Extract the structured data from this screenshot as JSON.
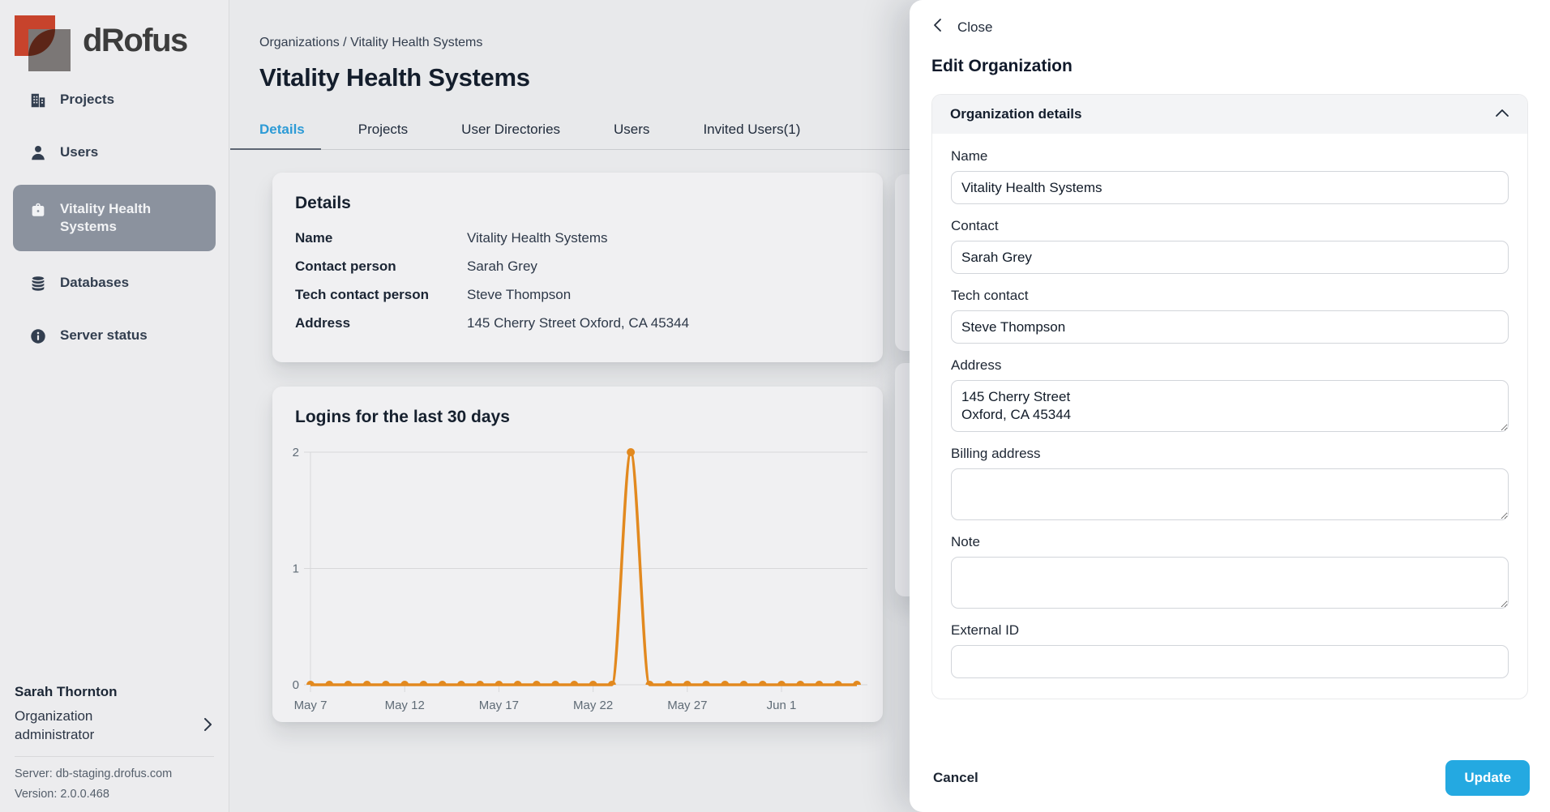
{
  "brand": {
    "name": "dRofus"
  },
  "sidebar": {
    "items": [
      {
        "id": "projects",
        "label": "Projects",
        "icon": "building",
        "active": false
      },
      {
        "id": "users",
        "label": "Users",
        "icon": "user",
        "active": false
      },
      {
        "id": "vitality-health-systems",
        "label": "Vitality Health Systems",
        "icon": "briefcase",
        "active": true
      },
      {
        "id": "databases",
        "label": "Databases",
        "icon": "database",
        "active": false
      },
      {
        "id": "server-status",
        "label": "Server status",
        "icon": "info",
        "active": false
      }
    ],
    "user": {
      "name": "Sarah Thornton",
      "role": "Organization administrator"
    },
    "server": "Server: db-staging.drofus.com",
    "version": "Version: 2.0.0.468"
  },
  "main": {
    "breadcrumb": {
      "items": [
        "Organizations",
        "Vitality Health Systems"
      ],
      "separator": " / "
    },
    "title": "Vitality Health Systems",
    "tabs": [
      {
        "label": "Details",
        "active": true
      },
      {
        "label": "Projects",
        "active": false
      },
      {
        "label": "User Directories",
        "active": false
      },
      {
        "label": "Users",
        "active": false
      },
      {
        "label": "Invited Users(1)",
        "active": false
      }
    ],
    "details_card": {
      "title": "Details",
      "rows": [
        {
          "label": "Name",
          "value": "Vitality Health Systems"
        },
        {
          "label": "Contact person",
          "value": "Sarah Grey"
        },
        {
          "label": "Tech contact person",
          "value": "Steve Thompson"
        },
        {
          "label": "Address",
          "value": "145 Cherry Street Oxford, CA 45344"
        }
      ]
    },
    "chart_card_title": "Logins for the last 30 days"
  },
  "chart_data": {
    "type": "line",
    "title": "Logins for the last 30 days",
    "x": [
      "May 7",
      "May 8",
      "May 9",
      "May 10",
      "May 11",
      "May 12",
      "May 13",
      "May 14",
      "May 15",
      "May 16",
      "May 17",
      "May 18",
      "May 19",
      "May 20",
      "May 21",
      "May 22",
      "May 23",
      "May 24",
      "May 25",
      "May 26",
      "May 27",
      "May 28",
      "May 29",
      "May 30",
      "May 31",
      "Jun 1",
      "Jun 2",
      "Jun 3",
      "Jun 4",
      "Jun 5"
    ],
    "values": [
      0,
      0,
      0,
      0,
      0,
      0,
      0,
      0,
      0,
      0,
      0,
      0,
      0,
      0,
      0,
      0,
      0,
      2,
      0,
      0,
      0,
      0,
      0,
      0,
      0,
      0,
      0,
      0,
      0,
      0
    ],
    "xlabel": "",
    "ylabel": "",
    "ylim": [
      0,
      2
    ],
    "yticks": [
      0,
      1,
      2
    ],
    "xticks": [
      {
        "label": "May 7",
        "i": 0
      },
      {
        "label": "May 12",
        "i": 5
      },
      {
        "label": "May 17",
        "i": 10
      },
      {
        "label": "May 22",
        "i": 15
      },
      {
        "label": "May 27",
        "i": 20
      },
      {
        "label": "Jun 1",
        "i": 25
      }
    ],
    "grid": true,
    "legend": "none",
    "line_color": "#e2891f",
    "grid_color": "#d7d8da",
    "tick_text_color": "#5f6b76"
  },
  "panel": {
    "close_label": "Close",
    "title": "Edit Organization",
    "section_title": "Organization details",
    "fields": [
      {
        "label": "Name",
        "type": "input",
        "value": "Vitality Health Systems"
      },
      {
        "label": "Contact",
        "type": "input",
        "value": "Sarah Grey"
      },
      {
        "label": "Tech contact",
        "type": "input",
        "value": "Steve Thompson"
      },
      {
        "label": "Address",
        "type": "textarea",
        "value": "145 Cherry Street\nOxford, CA 45344"
      },
      {
        "label": "Billing address",
        "type": "textarea",
        "value": ""
      },
      {
        "label": "Note",
        "type": "textarea",
        "value": ""
      },
      {
        "label": "External ID",
        "type": "input",
        "value": ""
      }
    ],
    "cancel_label": "Cancel",
    "update_label": "Update"
  },
  "colors": {
    "accent_blue": "#24a9e1",
    "tab_active_blue": "#2d9bd6",
    "selected_nav_bg": "#8b929e",
    "chart_line_orange": "#e2891f",
    "logo_red": "#c7432c",
    "logo_gray": "#7b7776",
    "logo_leaf": "#5c2517"
  }
}
